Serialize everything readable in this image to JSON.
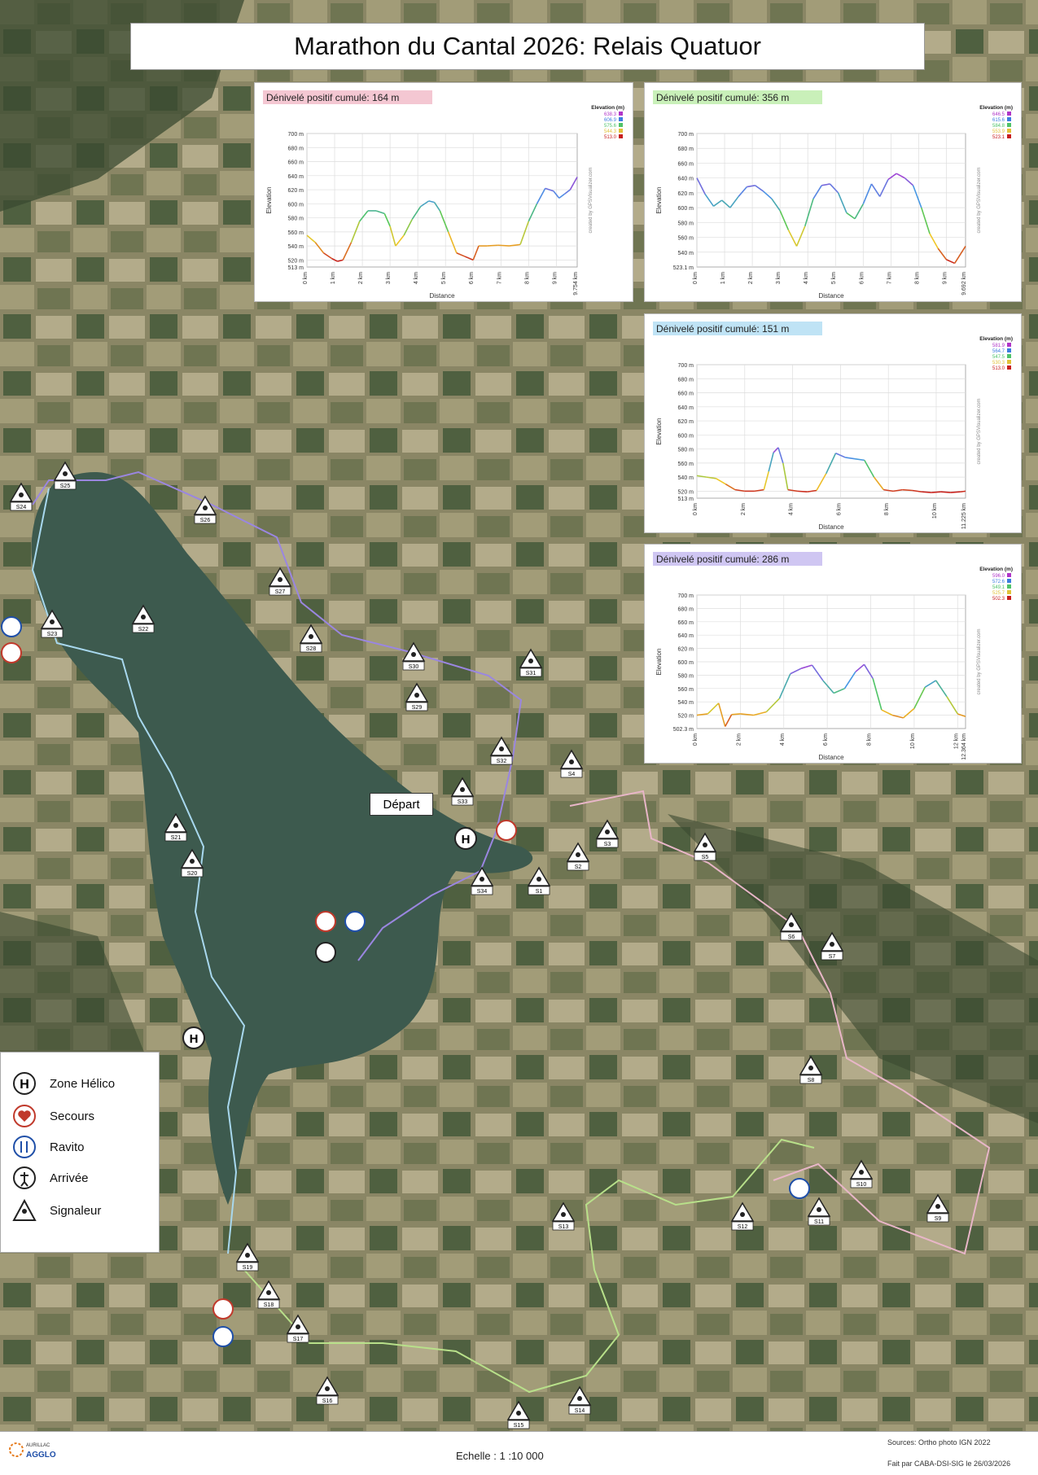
{
  "title": "Marathon du Cantal 2026: Relais Quatuor",
  "depart_label": "Départ",
  "colors": {
    "route_1": "#e8b6c8",
    "route_2": "#a8d8ee",
    "route_3": "#b8e08a",
    "route_4": "#9a86e0",
    "lake": "#3d5a4e"
  },
  "charts": [
    {
      "header": "Dénivelé positif cumulé: 164 m",
      "header_color": "#f4c7d2",
      "ylabel": "Elevation",
      "xlabel": "Distance",
      "credit": "created by GPSVisualizer.com",
      "legend_title": "Elevation (m)",
      "legend_values": [
        "638.3",
        "606.9",
        "575.6",
        "544.3",
        "513.0"
      ],
      "ymin_label": "513 m",
      "x_end_label": "9.754 km",
      "chart_data": {
        "type": "line",
        "xlabel": "Distance",
        "ylabel": "Elevation",
        "ylim": [
          510,
          700
        ],
        "xlim": [
          0,
          9.754
        ],
        "yticks": [
          "520 m",
          "540 m",
          "560 m",
          "580 m",
          "600 m",
          "620 m",
          "640 m",
          "660 m",
          "680 m",
          "700 m"
        ],
        "xticks": [
          "0 km",
          "1 km",
          "2 km",
          "3 km",
          "4 km",
          "5 km",
          "6 km",
          "7 km",
          "8 km",
          "9 km"
        ],
        "x": [
          0,
          0.3,
          0.6,
          0.9,
          1.1,
          1.3,
          1.6,
          1.9,
          2.2,
          2.5,
          2.8,
          3.0,
          3.2,
          3.5,
          3.8,
          4.1,
          4.4,
          4.6,
          4.8,
          5.1,
          5.4,
          5.7,
          6.0,
          6.2,
          6.5,
          6.9,
          7.3,
          7.7,
          8.0,
          8.3,
          8.6,
          8.9,
          9.1,
          9.3,
          9.5,
          9.754
        ],
        "y": [
          555,
          545,
          530,
          522,
          518,
          520,
          545,
          575,
          590,
          590,
          586,
          568,
          540,
          555,
          578,
          596,
          604,
          602,
          590,
          560,
          530,
          525,
          520,
          540,
          540,
          541,
          540,
          542,
          575,
          600,
          622,
          618,
          608,
          614,
          620,
          638
        ]
      }
    },
    {
      "header": "Dénivelé positif cumulé: 356 m",
      "header_color": "#c9f0b9",
      "ylabel": "Elevation",
      "xlabel": "Distance",
      "credit": "created by GPSVisualizer.com",
      "legend_title": "Elevation (m)",
      "legend_values": [
        "646.5",
        "615.6",
        "584.8",
        "553.9",
        "523.1"
      ],
      "ymin_label": "523.1 m",
      "x_end_label": "9.692 km",
      "chart_data": {
        "type": "line",
        "xlabel": "Distance",
        "ylabel": "Elevation",
        "ylim": [
          520,
          700
        ],
        "xlim": [
          0,
          9.692
        ],
        "yticks": [
          "540 m",
          "560 m",
          "580 m",
          "600 m",
          "620 m",
          "640 m",
          "660 m",
          "680 m",
          "700 m"
        ],
        "xticks": [
          "0 km",
          "1 km",
          "2 km",
          "3 km",
          "4 km",
          "5 km",
          "6 km",
          "7 km",
          "8 km",
          "9 km"
        ],
        "x": [
          0,
          0.3,
          0.6,
          0.9,
          1.2,
          1.5,
          1.8,
          2.1,
          2.4,
          2.7,
          3.0,
          3.3,
          3.6,
          3.9,
          4.2,
          4.5,
          4.8,
          5.1,
          5.4,
          5.7,
          6.0,
          6.3,
          6.6,
          6.9,
          7.2,
          7.5,
          7.8,
          8.1,
          8.4,
          8.7,
          9.0,
          9.3,
          9.692
        ],
        "y": [
          640,
          618,
          602,
          610,
          600,
          615,
          628,
          630,
          622,
          612,
          596,
          570,
          548,
          575,
          612,
          630,
          632,
          620,
          593,
          585,
          605,
          632,
          615,
          638,
          646,
          640,
          630,
          600,
          565,
          545,
          530,
          525,
          548
        ]
      }
    },
    {
      "header": "Dénivelé positif cumulé: 151 m",
      "header_color": "#bfe3f5",
      "ylabel": "Elevation",
      "xlabel": "Distance",
      "credit": "created by GPSVisualizer.com",
      "legend_title": "Elevation (m)",
      "legend_values": [
        "581.9",
        "564.7",
        "547.5",
        "530.3",
        "513.0"
      ],
      "ymin_label": "513 m",
      "x_end_label": "11.225 km",
      "chart_data": {
        "type": "line",
        "xlabel": "Distance",
        "ylabel": "Elevation",
        "ylim": [
          510,
          700
        ],
        "xlim": [
          0,
          11.225
        ],
        "yticks": [
          "520 m",
          "540 m",
          "560 m",
          "580 m",
          "600 m",
          "620 m",
          "640 m",
          "660 m",
          "680 m",
          "700 m"
        ],
        "xticks": [
          "0 km",
          "2 km",
          "4 km",
          "6 km",
          "8 km",
          "10 km"
        ],
        "x": [
          0,
          0.4,
          0.8,
          1.2,
          1.6,
          2.0,
          2.4,
          2.8,
          3.0,
          3.2,
          3.4,
          3.6,
          3.8,
          4.2,
          4.6,
          5.0,
          5.4,
          5.8,
          6.2,
          6.6,
          7.0,
          7.4,
          7.8,
          8.2,
          8.6,
          9.0,
          9.4,
          9.8,
          10.2,
          10.6,
          11.0,
          11.225
        ],
        "y": [
          542,
          540,
          538,
          530,
          522,
          520,
          520,
          522,
          548,
          575,
          582,
          560,
          522,
          520,
          519,
          521,
          545,
          574,
          568,
          566,
          564,
          540,
          522,
          520,
          522,
          521,
          519,
          518,
          519,
          518,
          519,
          520
        ]
      }
    },
    {
      "header": "Dénivelé positif cumulé: 286 m",
      "header_color": "#cfc6f2",
      "ylabel": "Elevation",
      "xlabel": "Distance",
      "credit": "created by GPSVisualizer.com",
      "legend_title": "Elevation (m)",
      "legend_values": [
        "596.0",
        "572.6",
        "549.1",
        "525.7",
        "502.3"
      ],
      "ymin_label": "502.3 m",
      "x_end_label": "12.364 km",
      "chart_data": {
        "type": "line",
        "xlabel": "Distance",
        "ylabel": "Elevation",
        "ylim": [
          500,
          700
        ],
        "xlim": [
          0,
          12.364
        ],
        "yticks": [
          "520 m",
          "540 m",
          "560 m",
          "580 m",
          "600 m",
          "620 m",
          "640 m",
          "660 m",
          "680 m",
          "700 m"
        ],
        "xticks": [
          "0 km",
          "2 km",
          "4 km",
          "6 km",
          "8 km",
          "10 km",
          "12 km"
        ],
        "x": [
          0,
          0.5,
          1.0,
          1.3,
          1.6,
          2.0,
          2.6,
          3.2,
          3.8,
          4.3,
          4.8,
          5.3,
          5.8,
          6.3,
          6.8,
          7.3,
          7.7,
          8.1,
          8.5,
          9.0,
          9.5,
          10.0,
          10.5,
          11.0,
          11.5,
          12.0,
          12.364
        ],
        "y": [
          520,
          522,
          538,
          503,
          521,
          522,
          520,
          525,
          545,
          582,
          590,
          595,
          572,
          553,
          560,
          585,
          596,
          575,
          528,
          520,
          516,
          530,
          562,
          572,
          548,
          522,
          518
        ]
      }
    }
  ],
  "legend": {
    "items": [
      {
        "label": "Zone Hélico",
        "icon": "helicopter-zone-icon"
      },
      {
        "label": "Secours",
        "icon": "first-aid-heart-icon"
      },
      {
        "label": "Ravito",
        "icon": "fork-knife-icon"
      },
      {
        "label": "Arrivée",
        "icon": "finish-runner-icon"
      },
      {
        "label": "Signaleur",
        "icon": "marshal-triangle-icon"
      }
    ]
  },
  "signaleurs": [
    "S1",
    "S2",
    "S3",
    "S4",
    "S5",
    "S6",
    "S7",
    "S8",
    "S9",
    "S10",
    "S11",
    "S12",
    "S13",
    "S14",
    "S15",
    "S16",
    "S17",
    "S18",
    "S19",
    "S20",
    "S21",
    "S22",
    "S23",
    "S24",
    "S25",
    "S26",
    "S27",
    "S28",
    "S29",
    "S30",
    "S31",
    "S32",
    "S33",
    "S34"
  ],
  "footer": {
    "logo_top": "AURILLAC",
    "logo_bottom": "AGGLO",
    "scale": "Echelle : 1 :10 000",
    "sources": "Sources: Ortho photo IGN 2022",
    "made_by": "Fait par CABA-DSI-SIG le 26/03/2026"
  }
}
